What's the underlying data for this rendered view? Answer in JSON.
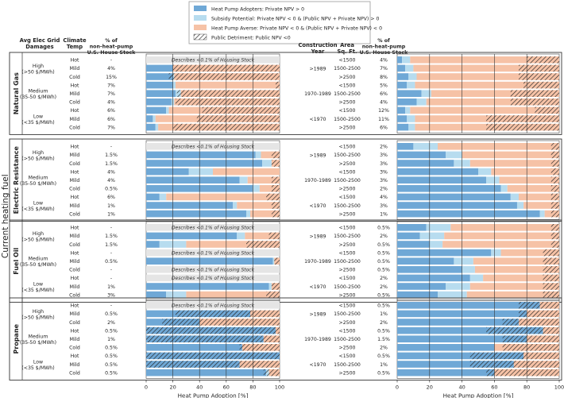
{
  "chart_data": {
    "type": "bar",
    "stacking": "horizontal-stacked-100",
    "xlabel": "Heat Pump Adoption [%]",
    "ylabel": "Current heating fuel",
    "xlim": [
      0,
      100
    ],
    "xticks": [
      0,
      20,
      40,
      60,
      80,
      100
    ],
    "legend": {
      "position": "top-center",
      "entries": [
        {
          "name": "Heat Pump Adopters: Private NPV > 0",
          "color": "#6fa8d6",
          "hatch": false
        },
        {
          "name": "Subsidy Potential: Private NPV < 0 & (Public NPV + Private NPV) > 0",
          "color": "#b7dcef",
          "hatch": false
        },
        {
          "name": "Heat Pump Averse: Private NPV < 0 & (Public NPV + Private NPV) < 0",
          "color": "#f6c2a6",
          "hatch": false
        },
        {
          "name": "Public Detriment: Public NPV <0",
          "color": "#ffffff",
          "hatch": true
        }
      ]
    },
    "left_headers": {
      "damages": "Avg Elec Grid\nDamages",
      "climate": "Climate\nTemp",
      "pct": "% of\nnon-heat-pump\nU.S. House Stock"
    },
    "right_headers": {
      "year": "Construction\nYear",
      "area": "Area\nSq. Ft.",
      "pct": "% of\nnon-heat-pump\nU.S. House Stock"
    },
    "damage_groups": [
      "High\n(>50 $/MWh)",
      "Medium\n(35-50 $/MWh)",
      "Low\n(<35 $/MWh)"
    ],
    "climates": [
      "Hot",
      "Mild",
      "Cold"
    ],
    "years": [
      ">1989",
      "1970-1989",
      "<1970"
    ],
    "areas": [
      "<1500",
      "1500-2500",
      ">2500"
    ],
    "note": "Describes <0.1% of Housing Stock",
    "panels": [
      {
        "fuel": "Natural Gas",
        "left": {
          "pct": [
            "-",
            "4%",
            "15%",
            "7%",
            "7%",
            "4%",
            "6%",
            "6%",
            "7%"
          ],
          "rows": [
            null,
            [
              20,
              0,
              80,
              80
            ],
            [
              20,
              1,
              79,
              83
            ],
            [
              20,
              2,
              78,
              3
            ],
            [
              22,
              4,
              74,
              77
            ],
            [
              19,
              2,
              79,
              78
            ],
            [
              15,
              2,
              83,
              58
            ],
            [
              5,
              2,
              93,
              62
            ],
            [
              7,
              2,
              91,
              80
            ]
          ]
        },
        "right": {
          "pct": [
            "4%",
            "7%",
            "8%",
            "5%",
            "6%",
            "4%",
            "12%",
            "11%",
            "6%"
          ],
          "rows": [
            [
              3,
              5,
              92,
              20
            ],
            [
              5,
              5,
              90,
              25
            ],
            [
              7,
              5,
              88,
              25
            ],
            [
              6,
              5,
              89,
              22
            ],
            [
              15,
              6,
              79,
              30
            ],
            [
              12,
              6,
              82,
              30
            ],
            [
              5,
              3,
              92,
              15
            ],
            [
              6,
              5,
              89,
              45
            ],
            [
              7,
              4,
              89,
              45
            ]
          ]
        }
      },
      {
        "fuel": "Electric Resistance",
        "left": {
          "pct": [
            "-",
            "1.5%",
            "1.5%",
            "4%",
            "4%",
            "0.5%",
            "6%",
            "1%",
            "1%"
          ],
          "rows": [
            null,
            [
              82,
              4,
              14,
              6
            ],
            [
              87,
              7,
              6,
              6
            ],
            [
              32,
              18,
              50,
              0
            ],
            [
              70,
              6,
              24,
              6
            ],
            [
              80,
              5,
              15,
              6
            ],
            [
              10,
              5,
              85,
              10
            ],
            [
              65,
              3,
              32,
              6
            ],
            [
              75,
              3,
              22,
              6
            ]
          ]
        },
        "right": {
          "pct": [
            "2%",
            "3%",
            "3%",
            "3%",
            "3%",
            "2%",
            "4%",
            "3%",
            "1%"
          ],
          "rows": [
            [
              10,
              15,
              75,
              5
            ],
            [
              30,
              10,
              60,
              5
            ],
            [
              35,
              10,
              55,
              5
            ],
            [
              50,
              8,
              42,
              5
            ],
            [
              55,
              8,
              37,
              5
            ],
            [
              64,
              4,
              32,
              5
            ],
            [
              70,
              5,
              25,
              5
            ],
            [
              74,
              4,
              22,
              5
            ],
            [
              88,
              3,
              9,
              5
            ]
          ]
        }
      },
      {
        "fuel": "Fuel Oil",
        "left": {
          "pct": [
            "-",
            "1.5%",
            "1.5%",
            "-",
            "0.5%",
            "-",
            "-",
            "1%",
            "3%"
          ],
          "rows": [
            null,
            [
              68,
              6,
              26,
              8
            ],
            [
              10,
              20,
              70,
              25
            ],
            null,
            [
              95,
              1,
              4,
              4
            ],
            null,
            null,
            [
              92,
              2,
              6,
              6
            ],
            [
              15,
              15,
              70,
              10
            ]
          ]
        },
        "right": {
          "pct": [
            "0.5%",
            "2%",
            "0.5%",
            "0.5%",
            "0.5%",
            "0.5%",
            "2%",
            "2%",
            "0.5%"
          ],
          "rows": [
            [
              18,
              15,
              67,
              5
            ],
            [
              14,
              15,
              71,
              5
            ],
            [
              20,
              8,
              72,
              5
            ],
            [
              58,
              6,
              36,
              10
            ],
            [
              35,
              12,
              53,
              10
            ],
            [
              40,
              8,
              52,
              10
            ],
            [
              45,
              8,
              47,
              10
            ],
            [
              30,
              15,
              55,
              10
            ],
            [
              25,
              18,
              57,
              10
            ]
          ]
        }
      },
      {
        "fuel": "Propane",
        "left": {
          "pct": [
            "-",
            "0.5%",
            "2%",
            "0.5%",
            "1%",
            "0.5%",
            "0.5%",
            "0.5%",
            "0.5%"
          ],
          "rows": [
            null,
            [
              78,
              0,
              22,
              78
            ],
            [
              40,
              0,
              60,
              88
            ],
            [
              97,
              0,
              3,
              100
            ],
            [
              88,
              0,
              12,
              100
            ],
            [
              72,
              0,
              28,
              30
            ],
            [
              100,
              0,
              0,
              100
            ],
            [
              70,
              0,
              30,
              100
            ],
            [
              90,
              2,
              8,
              12
            ]
          ]
        },
        "right": {
          "pct": [
            "0.5%",
            "1%",
            "2%",
            "0.5%",
            "1.5%",
            "2%",
            "0.5%",
            "1%",
            "0.5%"
          ],
          "rows": [
            [
              88,
              0,
              12,
              25
            ],
            [
              80,
              0,
              20,
              25
            ],
            [
              75,
              0,
              25,
              35
            ],
            [
              90,
              0,
              10,
              45
            ],
            [
              80,
              0,
              20,
              35
            ],
            [
              60,
              0,
              40,
              35
            ],
            [
              78,
              0,
              22,
              55
            ],
            [
              72,
              0,
              28,
              55
            ],
            [
              60,
              0,
              40,
              45
            ]
          ]
        }
      }
    ]
  }
}
